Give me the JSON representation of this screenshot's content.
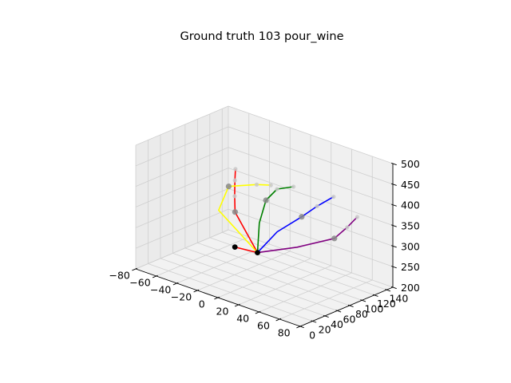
{
  "chart_data": {
    "type": "scatter",
    "title": "Ground truth 103 pour_wine",
    "xlabel": "",
    "ylabel": "",
    "zlabel": "",
    "xlim": [
      -80,
      80
    ],
    "ylim": [
      0,
      150
    ],
    "zlim": [
      200,
      500
    ],
    "x_ticks": [
      -80,
      -60,
      -40,
      -20,
      0,
      20,
      40,
      60,
      80
    ],
    "y_ticks": [
      0,
      20,
      40,
      60,
      80,
      100,
      120,
      140
    ],
    "z_ticks": [
      200,
      250,
      300,
      350,
      400,
      450,
      500
    ],
    "grid": true,
    "palm_points": [
      {
        "x": -22,
        "y": 64,
        "z": 263,
        "color": "black"
      },
      {
        "x": -3,
        "y": 69,
        "z": 263,
        "color": "black"
      }
    ],
    "series": [
      {
        "color": "red",
        "points": [
          {
            "x": -22,
            "y": 64,
            "z": 263
          },
          {
            "x": -3,
            "y": 69,
            "z": 263
          },
          {
            "x": -23,
            "y": 66,
            "z": 346
          },
          {
            "x": -24,
            "y": 67,
            "z": 383
          },
          {
            "x": -25,
            "y": 69,
            "z": 419
          },
          {
            "x": -25,
            "y": 70,
            "z": 446
          }
        ]
      },
      {
        "color": "yellow",
        "points": [
          {
            "x": -3,
            "y": 69,
            "z": 263
          },
          {
            "x": -36,
            "y": 61,
            "z": 342
          },
          {
            "x": -28,
            "y": 64,
            "z": 405
          },
          {
            "x": -5,
            "y": 71,
            "z": 425
          },
          {
            "x": 7,
            "y": 74,
            "z": 432
          }
        ]
      },
      {
        "color": "green",
        "points": [
          {
            "x": -3,
            "y": 69,
            "z": 263
          },
          {
            "x": -3,
            "y": 72,
            "z": 333
          },
          {
            "x": 1,
            "y": 76,
            "z": 389
          },
          {
            "x": 10,
            "y": 79,
            "z": 422
          },
          {
            "x": 23,
            "y": 84,
            "z": 436
          }
        ]
      },
      {
        "color": "blue",
        "points": [
          {
            "x": -3,
            "y": 69,
            "z": 263
          },
          {
            "x": 12,
            "y": 76,
            "z": 322
          },
          {
            "x": 31,
            "y": 84,
            "z": 370
          },
          {
            "x": 43,
            "y": 89,
            "z": 403
          },
          {
            "x": 56,
            "y": 94,
            "z": 434
          }
        ]
      },
      {
        "color": "purple",
        "points": [
          {
            "x": -3,
            "y": 69,
            "z": 263
          },
          {
            "x": 29,
            "y": 80,
            "z": 297
          },
          {
            "x": 58,
            "y": 92,
            "z": 336
          },
          {
            "x": 68,
            "y": 96,
            "z": 369
          },
          {
            "x": 76,
            "y": 99,
            "z": 399
          }
        ]
      }
    ]
  }
}
